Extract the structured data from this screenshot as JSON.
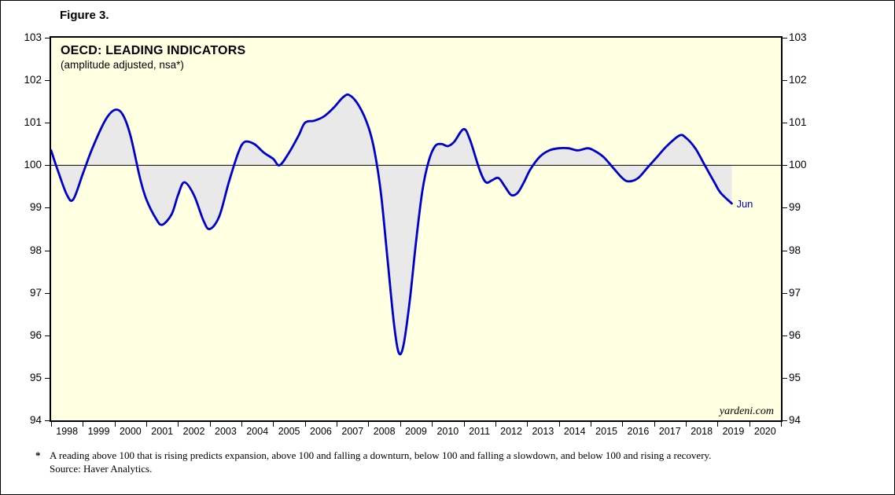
{
  "figure_label": "Figure 3.",
  "chart_data": {
    "type": "line",
    "title": "OECD: LEADING INDICATORS",
    "subtitle": "(amplitude adjusted, nsa*)",
    "watermark": "yardeni.com",
    "end_label": "Jun",
    "baseline": 100,
    "xlim": [
      1998,
      2021
    ],
    "ylim": [
      94,
      103
    ],
    "x_ticks": [
      1998,
      1999,
      2000,
      2001,
      2002,
      2003,
      2004,
      2005,
      2006,
      2007,
      2008,
      2009,
      2010,
      2011,
      2012,
      2013,
      2014,
      2015,
      2016,
      2017,
      2018,
      2019,
      2020
    ],
    "y_ticks": [
      94,
      95,
      96,
      97,
      98,
      99,
      100,
      101,
      102,
      103
    ],
    "grid": false,
    "legend": "none",
    "colors": {
      "line": "#0000CD",
      "plot_bg": "#FFFFE1",
      "fill": "#E9E9E9",
      "frame": "#000000"
    },
    "x": [
      1998.0,
      1998.2,
      1998.5,
      1998.7,
      1999.0,
      1999.3,
      1999.7,
      2000.0,
      2000.25,
      2000.5,
      2000.8,
      2001.0,
      2001.3,
      2001.5,
      2001.8,
      2002.0,
      2002.2,
      2002.5,
      2002.8,
      2003.0,
      2003.3,
      2003.6,
      2003.9,
      2004.1,
      2004.4,
      2004.7,
      2005.0,
      2005.2,
      2005.5,
      2005.8,
      2006.0,
      2006.3,
      2006.6,
      2006.9,
      2007.2,
      2007.4,
      2007.7,
      2008.0,
      2008.2,
      2008.4,
      2008.6,
      2008.8,
      2008.95,
      2009.1,
      2009.3,
      2009.5,
      2009.7,
      2009.9,
      2010.1,
      2010.3,
      2010.5,
      2010.7,
      2011.0,
      2011.2,
      2011.5,
      2011.7,
      2011.9,
      2012.1,
      2012.3,
      2012.5,
      2012.7,
      2012.9,
      2013.1,
      2013.4,
      2013.7,
      2014.0,
      2014.3,
      2014.6,
      2014.9,
      2015.1,
      2015.4,
      2015.7,
      2016.0,
      2016.2,
      2016.5,
      2016.8,
      2017.1,
      2017.4,
      2017.8,
      2018.0,
      2018.3,
      2018.6,
      2018.9,
      2019.1,
      2019.45
    ],
    "y": [
      100.35,
      99.9,
      99.3,
      99.2,
      99.8,
      100.4,
      101.05,
      101.3,
      101.2,
      100.7,
      99.7,
      99.2,
      98.75,
      98.6,
      98.85,
      99.3,
      99.6,
      99.3,
      98.7,
      98.5,
      98.8,
      99.6,
      100.3,
      100.55,
      100.5,
      100.3,
      100.15,
      100.0,
      100.3,
      100.7,
      101.0,
      101.05,
      101.15,
      101.35,
      101.6,
      101.65,
      101.4,
      100.9,
      100.3,
      99.3,
      97.8,
      96.3,
      95.6,
      95.75,
      96.8,
      98.2,
      99.4,
      100.1,
      100.45,
      100.5,
      100.45,
      100.55,
      100.85,
      100.6,
      99.9,
      99.6,
      99.65,
      99.7,
      99.5,
      99.3,
      99.35,
      99.6,
      99.9,
      100.2,
      100.35,
      100.4,
      100.4,
      100.35,
      100.4,
      100.35,
      100.2,
      99.95,
      99.7,
      99.62,
      99.7,
      99.95,
      100.2,
      100.45,
      100.7,
      100.65,
      100.4,
      100.0,
      99.6,
      99.35,
      99.1
    ]
  },
  "footnote": {
    "marker": "*",
    "text": "A reading above 100 that is rising predicts expansion, above 100 and falling a downturn, below 100 and falling a slowdown, and below 100 and rising a recovery.",
    "source": "Source: Haver Analytics."
  }
}
